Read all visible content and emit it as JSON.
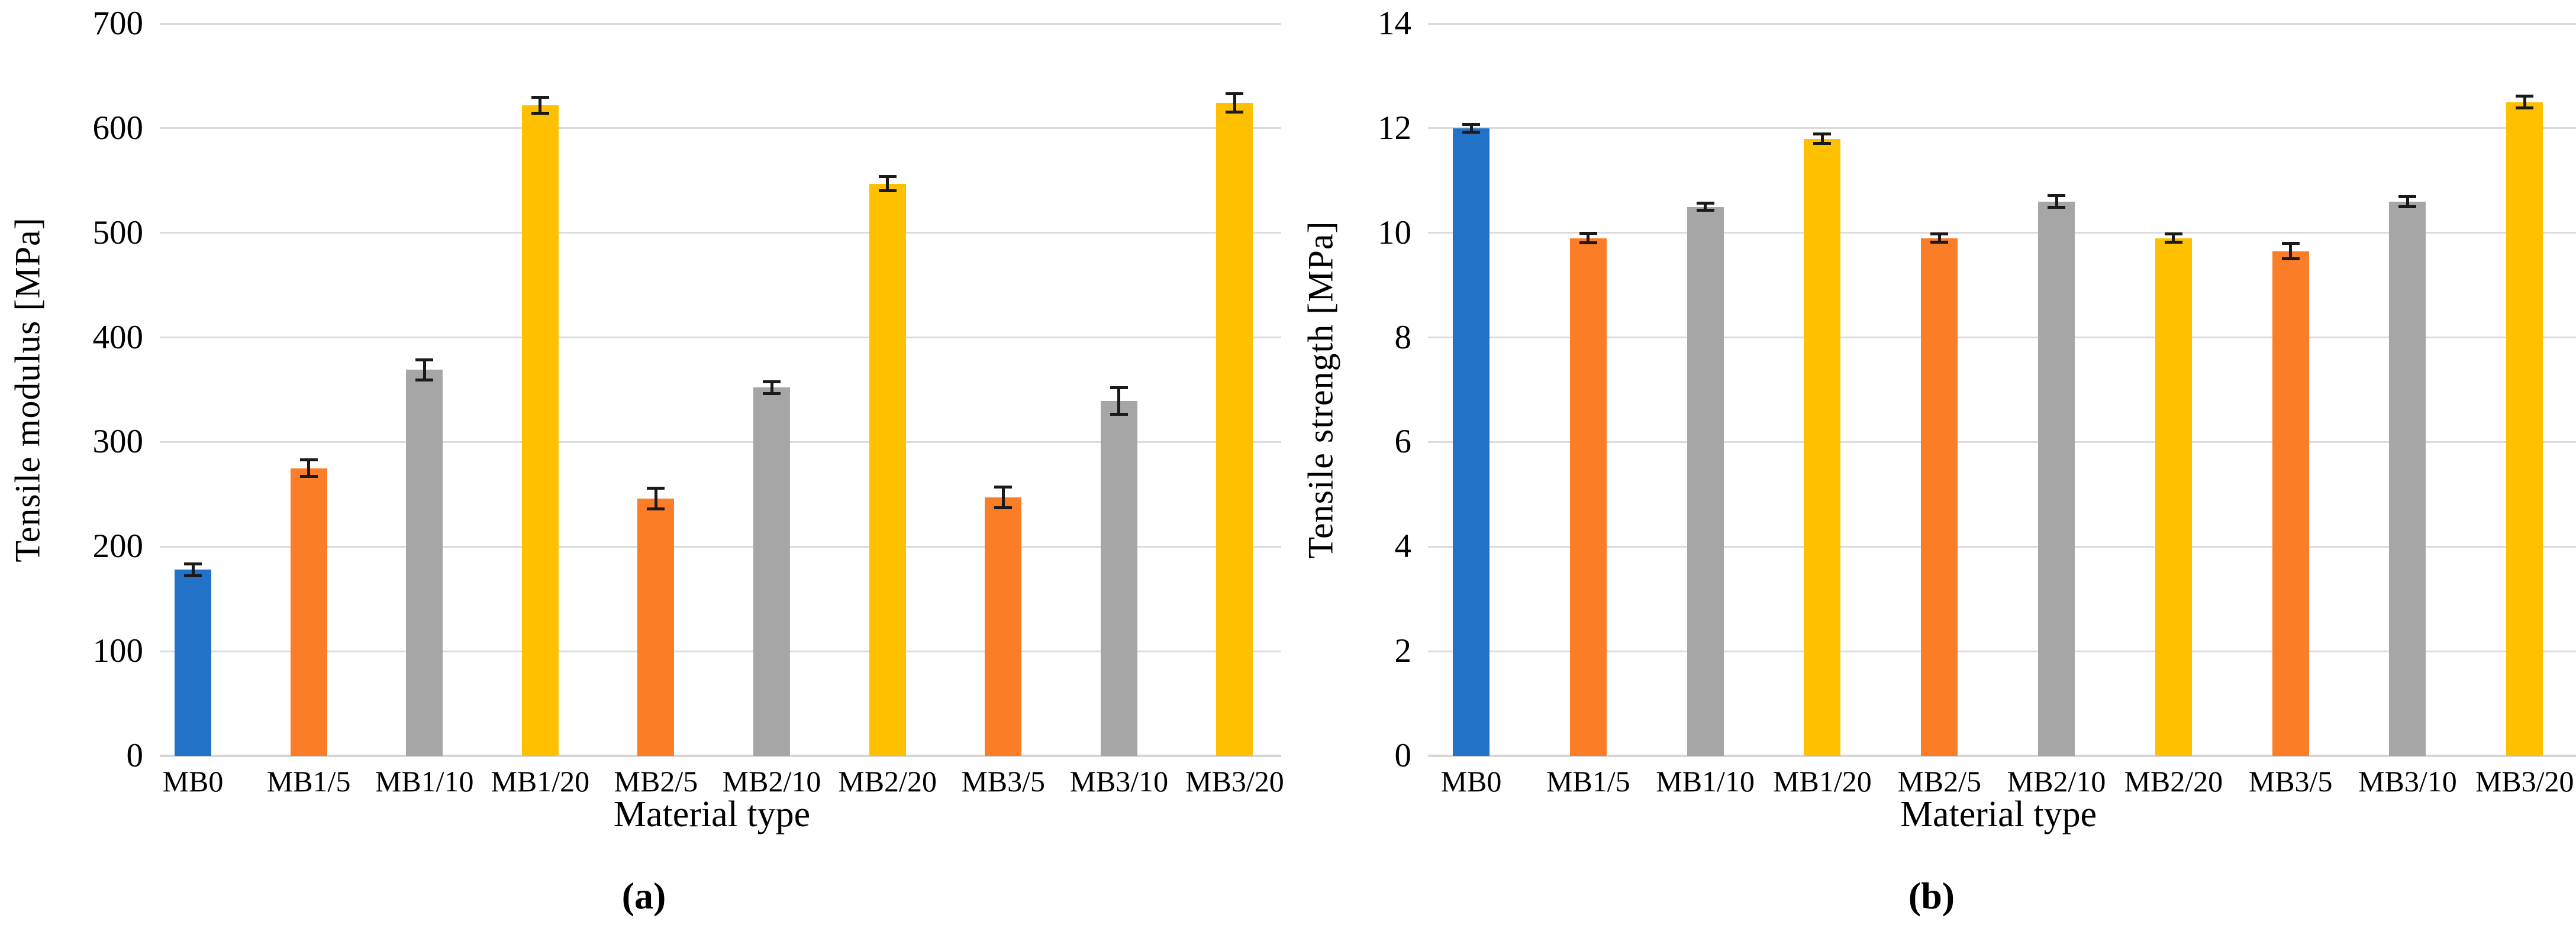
{
  "figure": {
    "captions": [
      "(a)",
      "(b)"
    ],
    "background": "#ffffff",
    "text_color": "#000000",
    "gridline_color": "#dcdcdc",
    "axis_line_color": "#d6d6d6",
    "error_bar_color": "#1a1a1a"
  },
  "palette": {
    "blue": "#2272c7",
    "orange": "#fb7d28",
    "gray": "#a6a6a6",
    "yellow": "#ffc000"
  },
  "chart_data": [
    {
      "type": "bar",
      "panel": "a",
      "title": "",
      "xlabel": "Material type",
      "ylabel": "Tensile modulus [MPa]",
      "categories": [
        "MB0",
        "MB1/5",
        "MB1/10",
        "MB1/20",
        "MB2/5",
        "MB2/10",
        "MB2/20",
        "MB3/5",
        "MB3/10",
        "MB3/20"
      ],
      "values": [
        178,
        275,
        369,
        622,
        246,
        352,
        547,
        247,
        339,
        624
      ],
      "errors": [
        6,
        8,
        10,
        8,
        10,
        6,
        7,
        10,
        13,
        9
      ],
      "bar_colors": [
        "#2272c7",
        "#fb7d28",
        "#a6a6a6",
        "#ffc000",
        "#fb7d28",
        "#a6a6a6",
        "#ffc000",
        "#fb7d28",
        "#a6a6a6",
        "#ffc000"
      ],
      "ylim": [
        0,
        700
      ],
      "ytick_step": 100,
      "yticks": [
        0,
        100,
        200,
        300,
        400,
        500,
        600,
        700
      ],
      "grid": "horizontal",
      "legend": "none",
      "error_bars": true
    },
    {
      "type": "bar",
      "panel": "b",
      "title": "",
      "xlabel": "Material type",
      "ylabel": "Tensile strength [MPa]",
      "categories": [
        "MB0",
        "MB1/5",
        "MB1/10",
        "MB1/20",
        "MB2/5",
        "MB2/10",
        "MB2/20",
        "MB3/5",
        "MB3/10",
        "MB3/20"
      ],
      "values": [
        12.0,
        9.9,
        10.5,
        11.8,
        9.9,
        10.6,
        9.9,
        9.65,
        10.6,
        12.5
      ],
      "errors": [
        0.08,
        0.1,
        0.07,
        0.1,
        0.08,
        0.12,
        0.08,
        0.15,
        0.1,
        0.12
      ],
      "bar_colors": [
        "#2272c7",
        "#fb7d28",
        "#a6a6a6",
        "#ffc000",
        "#fb7d28",
        "#a6a6a6",
        "#ffc000",
        "#fb7d28",
        "#a6a6a6",
        "#ffc000"
      ],
      "ylim": [
        0,
        14
      ],
      "ytick_step": 2,
      "yticks": [
        0,
        2,
        4,
        6,
        8,
        10,
        12,
        14
      ],
      "grid": "horizontal",
      "legend": "none",
      "error_bars": true
    }
  ]
}
